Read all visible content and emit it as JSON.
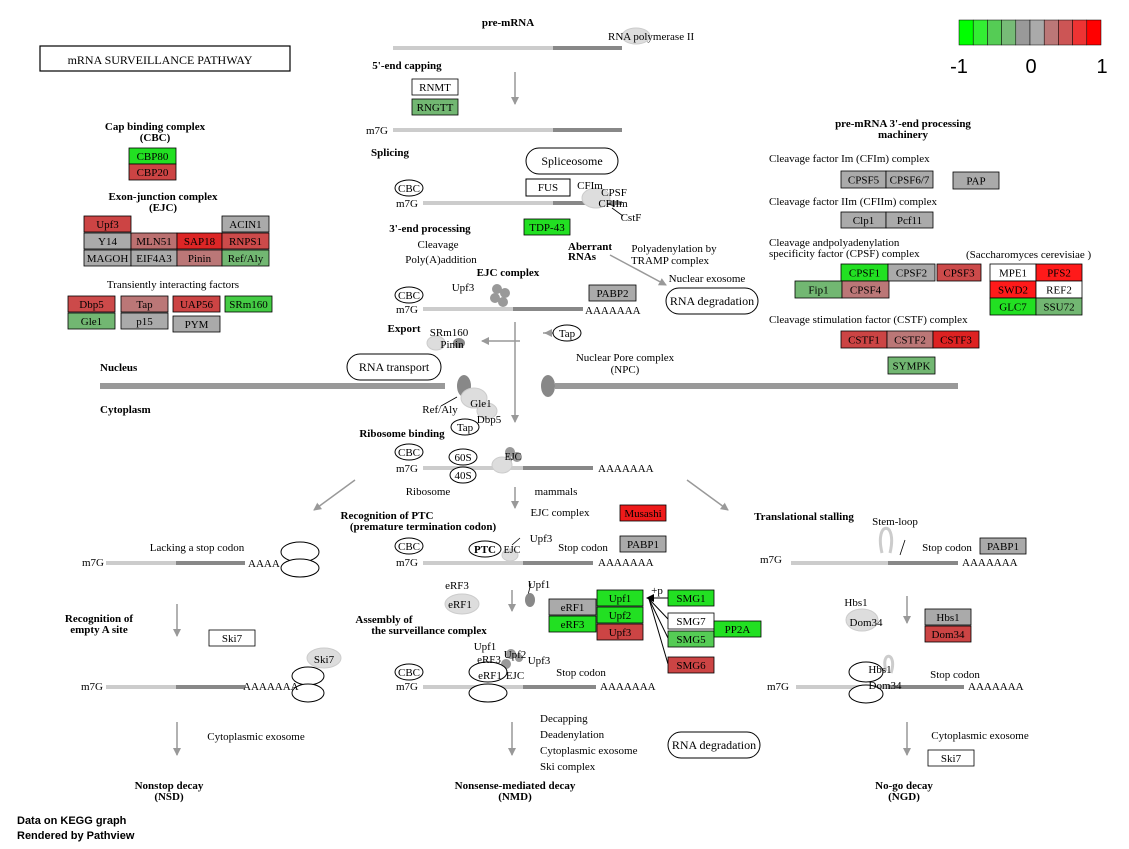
{
  "title": "mRNA SURVEILLANCE PATHWAY",
  "legend": {
    "colors": [
      "#00ff00",
      "#33ee33",
      "#55cc55",
      "#77bb77",
      "#999999",
      "#aaaaaa",
      "#bb7777",
      "#cc5555",
      "#ee3333",
      "#ff0000"
    ],
    "ticks": [
      "-1",
      "0",
      "1"
    ]
  },
  "footer": [
    "Data on KEGG graph",
    "Rendered by Pathview"
  ],
  "sections": {
    "pre_mrna": "pre-mRNA",
    "rna_pol": "RNA polymerase II",
    "capping": "5'-end capping",
    "splicing": "Splicing",
    "end3": "3'-end processing",
    "cleavage": "Cleavage",
    "polya": "Poly(A)addition",
    "ejc_complex": "EJC complex",
    "export": "Export",
    "nucleus": "Nucleus",
    "cytoplasm": "Cytoplasm",
    "ribosome_binding": "Ribosome binding",
    "recog_ptc": "Recognition of PTC",
    "recog_ptc2": "(premature termination codon)",
    "assembly": "Assembly of",
    "assembly2": "the surveillance complex",
    "recog_a": "Recognition of",
    "recog_a2": "empty A site",
    "translational_stalling": "Translational stalling",
    "lacking_stop": "Lacking a stop codon",
    "nsd": "Nonstop decay",
    "nsd2": "(NSD)",
    "nmd": "Nonsense-mediated decay",
    "nmd2": "(NMD)",
    "ngd": "No-go decay",
    "ngd2": "(NGD)",
    "cbc_title": "Cap binding complex",
    "cbc_title2": "(CBC)",
    "ejc_title": "Exon-junction complex",
    "ejc_title2": "(EJC)",
    "transient": "Transiently interacting factors",
    "pre3_title": "pre-mRNA 3'-end processing",
    "pre3_title2": "machinery",
    "cfim": "Cleavage factor Im (CFIm) complex",
    "cfiim": "Cleavage factor IIm (CFIIm) complex",
    "cpsf1": "Cleavage andpolyadenylation",
    "cpsf2": "specificity factor (CPSF) complex",
    "yeast": "(Saccharomyces cerevisiae )",
    "cstf": "Cleavage stimulation factor (CSTF) complex",
    "aberrant": "Aberrant",
    "aberrant2": "RNAs",
    "polyadenylation": "Polyadenylation by",
    "polyadenylation2": "TRAMP complex",
    "nuclear_exosome": "Nuclear exosome",
    "npc": "Nuclear Pore complex",
    "npc2": "(NPC)",
    "mammals": "mammals",
    "ejc_complex2": "EJC complex",
    "stem_loop": "Stem-loop",
    "cyto_exosome": "Cytoplasmic exosome",
    "cyto_exosome2": "Cytoplasmic exosome",
    "decapping": "Decapping",
    "deadenylation": "Deadenylation",
    "cyto_exosome3": "Cytoplasmic exosome",
    "ski_complex": "Ski complex"
  },
  "labels": {
    "m7g": "m7G",
    "cbc": "CBC",
    "aaa": "AAAAAAA",
    "aaa_short": "AAAA",
    "stop": "Stop codon",
    "upf3": "Upf3",
    "upf2": "Upf2",
    "upf1": "Upf1",
    "erf3": "eRF3",
    "erf1": "eRF1",
    "ejc": "EJC",
    "ptc": "PTC",
    "s60": "60S",
    "s40": "40S",
    "ribosome": "Ribosome",
    "srm160": "SRm160",
    "pinin": "Pinin",
    "refaly": "Ref/Aly",
    "gle1": "Gle1",
    "dbp5": "Dbp5",
    "tap": "Tap",
    "hbs1": "Hbs1",
    "dom34": "Dom34",
    "ski7": "Ski7",
    "cfim_lbl": "CFIm",
    "cpsf_lbl": "CPSF",
    "cfiim_lbl": "CFIIm",
    "cstf_lbl": "CstF",
    "fus": "FUS",
    "p": "+p"
  },
  "pills": {
    "spliceosome": "Spliceosome",
    "rna_degradation": "RNA degradation",
    "rna_transport": "RNA transport",
    "rna_degradation2": "RNA degradation"
  },
  "genes": [
    {
      "label": "RNMT",
      "color": "#ffffff"
    },
    {
      "label": "RNGTT",
      "color": "#72b772"
    },
    {
      "label": "CBP80",
      "color": "#22e022"
    },
    {
      "label": "CBP20",
      "color": "#cc4444"
    },
    {
      "label": "Upf3",
      "color": "#cc4444"
    },
    {
      "label": "ACIN1",
      "color": "#aaaaaa"
    },
    {
      "label": "Y14",
      "color": "#aaaaaa"
    },
    {
      "label": "MLN51",
      "color": "#bb7070"
    },
    {
      "label": "SAP18",
      "color": "#dd2626"
    },
    {
      "label": "RNPS1",
      "color": "#cc4a4a"
    },
    {
      "label": "MAGOH",
      "color": "#aaaaaa"
    },
    {
      "label": "EIF4A3",
      "color": "#aaaaaa"
    },
    {
      "label": "Pinin",
      "color": "#bb7777"
    },
    {
      "label": "Ref/Aly",
      "color": "#72b772"
    },
    {
      "label": "Dbp5",
      "color": "#cc4a4a"
    },
    {
      "label": "Tap",
      "color": "#bb7777"
    },
    {
      "label": "UAP56",
      "color": "#cc4444"
    },
    {
      "label": "SRm160",
      "color": "#44cc44"
    },
    {
      "label": "Gle1",
      "color": "#72b772"
    },
    {
      "label": "p15",
      "color": "#aaaaaa"
    },
    {
      "label": "PYM",
      "color": "#aaaaaa"
    },
    {
      "label": "TDP-43",
      "color": "#22e022"
    },
    {
      "label": "PABP2",
      "color": "#aaaaaa"
    },
    {
      "label": "CPSF5",
      "color": "#aaaaaa"
    },
    {
      "label": "CPSF6/7",
      "color": "#aaaaaa"
    },
    {
      "label": "PAP",
      "color": "#aaaaaa"
    },
    {
      "label": "Clp1",
      "color": "#aaaaaa"
    },
    {
      "label": "Pcf11",
      "color": "#aaaaaa"
    },
    {
      "label": "CPSF1",
      "color": "#22e022"
    },
    {
      "label": "CPSF2",
      "color": "#aaaaaa"
    },
    {
      "label": "CPSF3",
      "color": "#cc4a4a"
    },
    {
      "label": "MPE1",
      "color": "#ffffff"
    },
    {
      "label": "PFS2",
      "color": "#ff1a1a"
    },
    {
      "label": "Fip1",
      "color": "#72b772"
    },
    {
      "label": "CPSF4",
      "color": "#bb7777"
    },
    {
      "label": "SWD2",
      "color": "#ff1a1a"
    },
    {
      "label": "REF2",
      "color": "#ffffff"
    },
    {
      "label": "GLC7",
      "color": "#22e022"
    },
    {
      "label": "SSU72",
      "color": "#72b772"
    },
    {
      "label": "CSTF1",
      "color": "#cc4444"
    },
    {
      "label": "CSTF2",
      "color": "#bb7777"
    },
    {
      "label": "CSTF3",
      "color": "#dd2222"
    },
    {
      "label": "SYMPK",
      "color": "#72b772"
    },
    {
      "label": "Musashi",
      "color": "#ee1a1a"
    },
    {
      "label": "PABP1",
      "color": "#aaaaaa"
    },
    {
      "label": "PABP1",
      "color": "#aaaaaa"
    },
    {
      "label": "Upf1",
      "color": "#22e022"
    },
    {
      "label": "eRF1",
      "color": "#aaaaaa"
    },
    {
      "label": "Upf2",
      "color": "#22e022"
    },
    {
      "label": "eRF3",
      "color": "#22e022"
    },
    {
      "label": "Upf3",
      "color": "#cc4444"
    },
    {
      "label": "SMG1",
      "color": "#22e022"
    },
    {
      "label": "SMG7",
      "color": "#ffffff"
    },
    {
      "label": "SMG5",
      "color": "#55cc55"
    },
    {
      "label": "PP2A",
      "color": "#22e022"
    },
    {
      "label": "SMG6",
      "color": "#cc4444"
    },
    {
      "label": "Hbs1",
      "color": "#aaaaaa"
    },
    {
      "label": "Dom34",
      "color": "#cc4444"
    },
    {
      "label": "Ski7",
      "color": "#ffffff"
    },
    {
      "label": "Ski7",
      "color": "#ffffff"
    }
  ]
}
